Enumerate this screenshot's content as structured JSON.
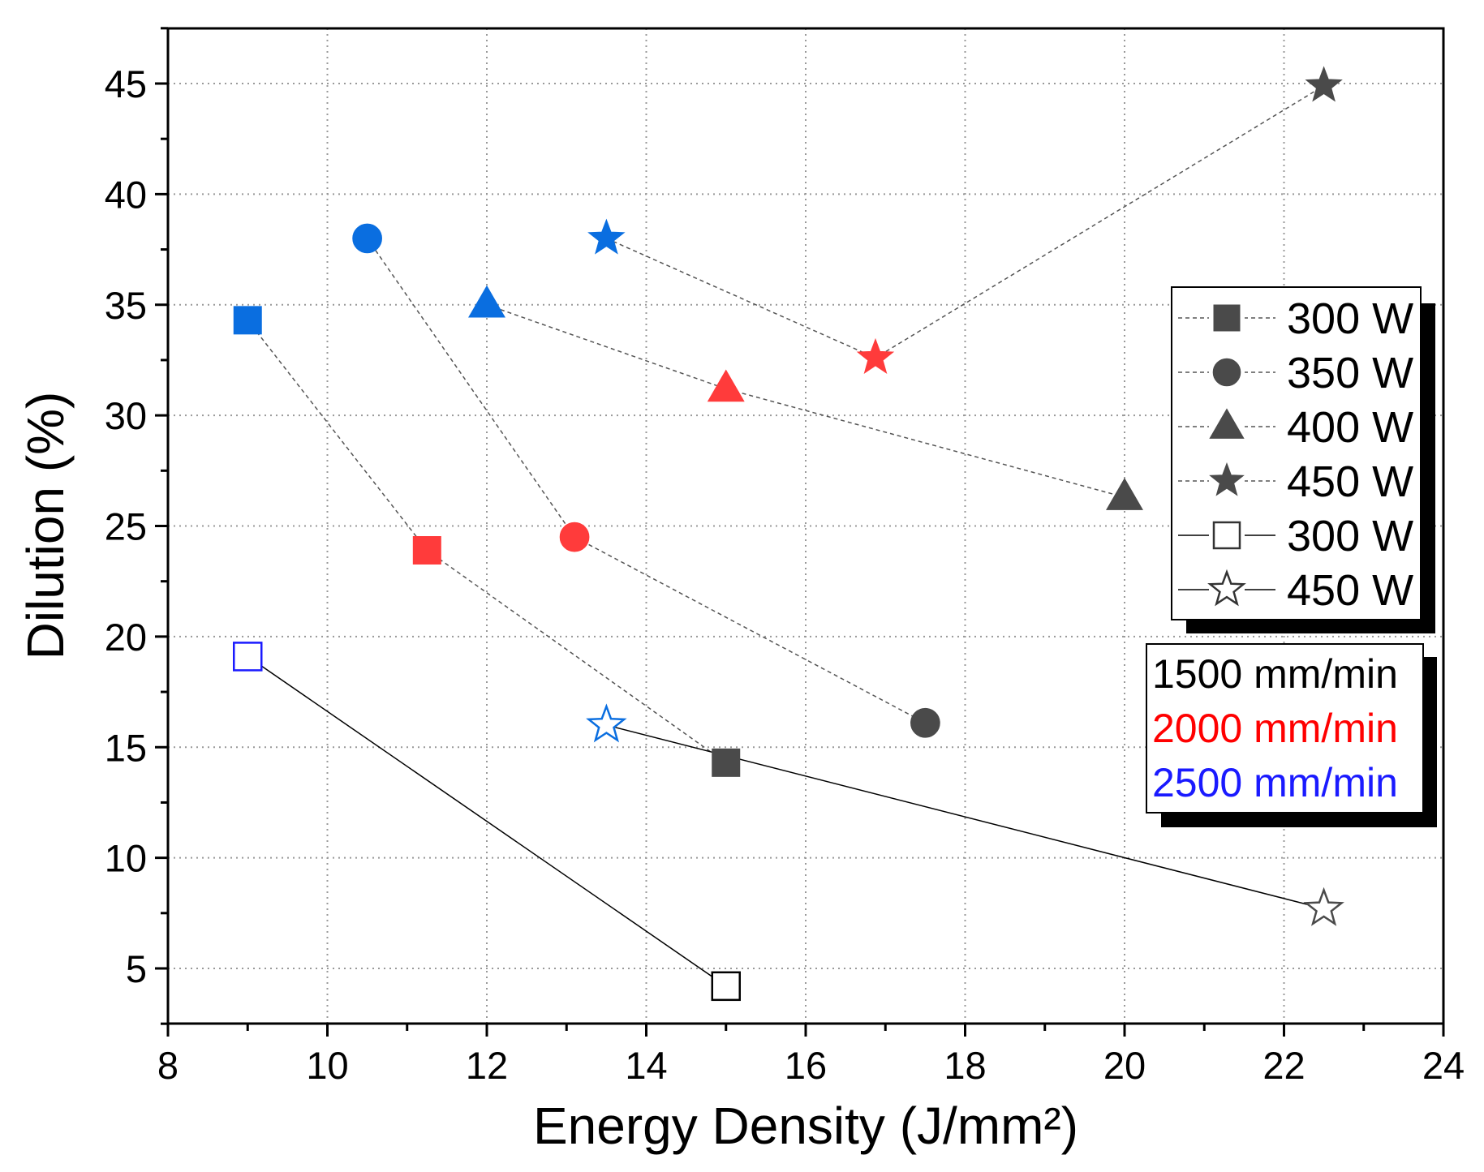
{
  "chart_data": {
    "type": "scatter",
    "title": "",
    "xlabel": "Energy Density (J/mm²)",
    "ylabel": "Dilution (%)",
    "xlim": [
      8,
      24
    ],
    "ylim": [
      2.5,
      47.5
    ],
    "xticks": [
      8,
      10,
      12,
      14,
      16,
      18,
      20,
      22,
      24
    ],
    "yticks": [
      5,
      10,
      15,
      20,
      25,
      30,
      35,
      40,
      45
    ],
    "grid": true,
    "legend_placement": "right",
    "colors": {
      "1500": "#4a4a4a",
      "2000": "#ff3b3b",
      "2500": "#0a6ee0",
      "black": "#000000",
      "blue_open": "#1a1aff"
    },
    "series": [
      {
        "name": "300 W",
        "marker": "square",
        "filled": true,
        "line": "dashed",
        "points": [
          {
            "x": 9,
            "y": 34.3,
            "c": "2500"
          },
          {
            "x": 11.25,
            "y": 23.9,
            "c": "2000"
          },
          {
            "x": 15,
            "y": 14.3,
            "c": "1500"
          }
        ]
      },
      {
        "name": "350 W",
        "marker": "circle",
        "filled": true,
        "line": "dashed",
        "points": [
          {
            "x": 10.5,
            "y": 38,
            "c": "2500"
          },
          {
            "x": 13.1,
            "y": 24.5,
            "c": "2000"
          },
          {
            "x": 17.5,
            "y": 16.1,
            "c": "1500"
          }
        ]
      },
      {
        "name": "400 W",
        "marker": "triangle",
        "filled": true,
        "line": "dashed",
        "points": [
          {
            "x": 12,
            "y": 35,
            "c": "2500"
          },
          {
            "x": 15,
            "y": 31.2,
            "c": "2000"
          },
          {
            "x": 20,
            "y": 26.3,
            "c": "1500"
          }
        ]
      },
      {
        "name": "450 W",
        "marker": "star",
        "filled": true,
        "line": "dashed",
        "points": [
          {
            "x": 13.5,
            "y": 38,
            "c": "2500"
          },
          {
            "x": 16.875,
            "y": 32.6,
            "c": "2000"
          },
          {
            "x": 22.5,
            "y": 44.9,
            "c": "1500"
          }
        ]
      },
      {
        "name": "300 W",
        "marker": "square",
        "filled": false,
        "line": "solid",
        "points": [
          {
            "x": 9,
            "y": 19.1,
            "c": "blue_open"
          },
          {
            "x": 15,
            "y": 4.2,
            "c": "black"
          }
        ]
      },
      {
        "name": "450 W",
        "marker": "star",
        "filled": false,
        "line": "solid",
        "points": [
          {
            "x": 13.5,
            "y": 16,
            "c": "2500"
          },
          {
            "x": 22.5,
            "y": 7.7,
            "c": "1500"
          }
        ]
      }
    ],
    "speed_legend": [
      {
        "label": "1500 mm/min",
        "color": "#000000"
      },
      {
        "label": "2000 mm/min",
        "color": "#ff0000"
      },
      {
        "label": "2500 mm/min",
        "color": "#1a1aff"
      }
    ]
  }
}
